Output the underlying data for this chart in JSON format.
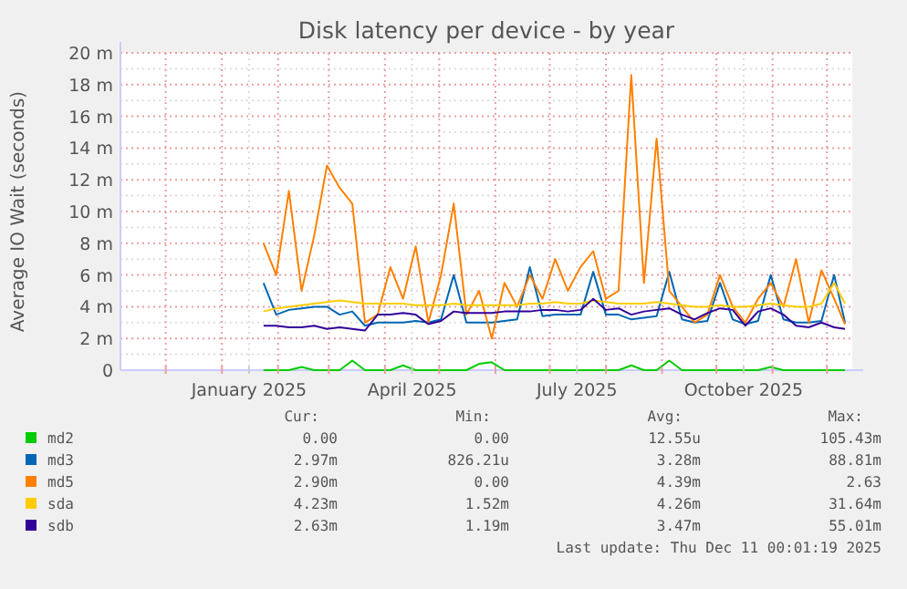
{
  "chart_data": {
    "type": "line",
    "title": "Disk latency per device - by year",
    "ylabel": "Average IO Wait (seconds)",
    "x": [
      "2025-01-24",
      "2025-01-31",
      "2025-02-07",
      "2025-02-14",
      "2025-02-21",
      "2025-02-28",
      "2025-03-07",
      "2025-03-14",
      "2025-03-21",
      "2025-03-28",
      "2025-04-04",
      "2025-04-11",
      "2025-04-18",
      "2025-04-25",
      "2025-05-02",
      "2025-05-09",
      "2025-05-16",
      "2025-05-23",
      "2025-05-30",
      "2025-06-06",
      "2025-06-13",
      "2025-06-20",
      "2025-06-27",
      "2025-07-04",
      "2025-07-11",
      "2025-07-18",
      "2025-07-25",
      "2025-08-01",
      "2025-08-08",
      "2025-08-15",
      "2025-08-22",
      "2025-08-29",
      "2025-09-05",
      "2025-09-12",
      "2025-09-19",
      "2025-09-26",
      "2025-10-03",
      "2025-10-10",
      "2025-10-17",
      "2025-10-24",
      "2025-10-31",
      "2025-11-07",
      "2025-11-14",
      "2025-11-21",
      "2025-11-28",
      "2025-12-05",
      "2025-12-11"
    ],
    "series": [
      {
        "name": "md2",
        "color": "#00cc00",
        "values": [
          0,
          0,
          0,
          0.2,
          0,
          0,
          0,
          0.6,
          0,
          0,
          0,
          0.3,
          0,
          0,
          0,
          0,
          0,
          0.4,
          0.5,
          0,
          0,
          0,
          0,
          0,
          0,
          0,
          0,
          0,
          0,
          0.3,
          0,
          0,
          0.6,
          0,
          0,
          0,
          0,
          0,
          0,
          0,
          0.2,
          0,
          0,
          0,
          0,
          0,
          0
        ]
      },
      {
        "name": "md3",
        "color": "#0066b3",
        "values": [
          5.5,
          3.5,
          3.8,
          3.9,
          4,
          4,
          3.5,
          3.7,
          2.8,
          3,
          3,
          3,
          3.1,
          3,
          3.2,
          6,
          3,
          3,
          3,
          3.1,
          3.2,
          6.5,
          3.4,
          3.5,
          3.5,
          3.5,
          6.2,
          3.5,
          3.5,
          3.2,
          3.3,
          3.4,
          6.2,
          3.2,
          3,
          3.1,
          5.5,
          3.2,
          2.9,
          3.1,
          6,
          3.2,
          3,
          3,
          3.1,
          6,
          3
        ]
      },
      {
        "name": "md5",
        "color": "#ff8000",
        "values": [
          8,
          6,
          11.3,
          5,
          8.5,
          12.9,
          11.5,
          10.5,
          3,
          3.5,
          6.5,
          4.5,
          7.8,
          3,
          6,
          10.5,
          3.5,
          5,
          2,
          5.5,
          4,
          6,
          4.5,
          7,
          5,
          6.5,
          7.5,
          4.5,
          5,
          18.6,
          5.5,
          14.6,
          5,
          4,
          3,
          3.5,
          6,
          4,
          3,
          4.5,
          5.5,
          4,
          7,
          3,
          6.3,
          4.5,
          2.9
        ]
      },
      {
        "name": "sda",
        "color": "#ffcc00",
        "values": [
          3.7,
          3.9,
          4,
          4.1,
          4.2,
          4.3,
          4.4,
          4.3,
          4.2,
          4.2,
          4.2,
          4.2,
          4.1,
          4.1,
          4.1,
          4.2,
          4.1,
          4.1,
          4.1,
          4.1,
          4.1,
          4.2,
          4.2,
          4.3,
          4.2,
          4.2,
          4.4,
          4.3,
          4.2,
          4.2,
          4.2,
          4.3,
          4.2,
          4.1,
          4,
          4,
          4.1,
          4,
          4,
          4.1,
          4.2,
          4.1,
          4,
          4,
          4.2,
          5.5,
          4.2
        ]
      },
      {
        "name": "sdb",
        "color": "#330099",
        "values": [
          2.8,
          2.8,
          2.7,
          2.7,
          2.8,
          2.6,
          2.7,
          2.6,
          2.5,
          3.5,
          3.5,
          3.6,
          3.5,
          2.9,
          3.1,
          3.7,
          3.6,
          3.6,
          3.6,
          3.7,
          3.7,
          3.7,
          3.8,
          3.8,
          3.7,
          3.8,
          4.5,
          3.8,
          3.9,
          3.5,
          3.7,
          3.8,
          3.9,
          3.5,
          3.2,
          3.6,
          3.9,
          3.8,
          2.8,
          3.7,
          3.9,
          3.5,
          2.8,
          2.7,
          3,
          2.7,
          2.6
        ]
      }
    ],
    "xlim": [
      "2024-11-06",
      "2025-12-15"
    ],
    "xticks": [
      {
        "value": "2024-12-01",
        "label": null
      },
      {
        "value": "2025-01-01",
        "label": null
      },
      {
        "value": "2025-01-16",
        "label": "January 2025"
      },
      {
        "value": "2025-02-01",
        "label": null
      },
      {
        "value": "2025-03-01",
        "label": null
      },
      {
        "value": "2025-04-01",
        "label": null
      },
      {
        "value": "2025-04-16",
        "label": "April 2025"
      },
      {
        "value": "2025-05-01",
        "label": null
      },
      {
        "value": "2025-06-01",
        "label": null
      },
      {
        "value": "2025-07-01",
        "label": null
      },
      {
        "value": "2025-07-16",
        "label": "July 2025"
      },
      {
        "value": "2025-08-01",
        "label": null
      },
      {
        "value": "2025-09-01",
        "label": null
      },
      {
        "value": "2025-10-01",
        "label": null
      },
      {
        "value": "2025-10-16",
        "label": "October 2025"
      },
      {
        "value": "2025-11-01",
        "label": null
      },
      {
        "value": "2025-12-01",
        "label": null
      }
    ],
    "ylim": [
      0,
      20
    ],
    "yticks": [
      0,
      {
        "value": 2,
        "label": "2 m"
      },
      {
        "value": 4,
        "label": "4 m"
      },
      {
        "value": 6,
        "label": "6 m"
      },
      {
        "value": 8,
        "label": "8 m"
      },
      {
        "value": 10,
        "label": "10 m"
      },
      {
        "value": 12,
        "label": "12 m"
      },
      {
        "value": 14,
        "label": "14 m"
      },
      {
        "value": 16,
        "label": "16 m"
      },
      {
        "value": 18,
        "label": "18 m"
      },
      {
        "value": 20,
        "label": "20 m"
      }
    ],
    "grid": true,
    "legend": "bottom",
    "line_style": "solid",
    "marker": "none",
    "annotations": [
      "Cur:",
      "Min:",
      "Avg:",
      "Max:",
      "0.00",
      "0.00",
      "12.55u",
      "105.43m",
      "2.97m",
      "826.21u",
      "3.28m",
      "88.81m",
      "2.90m",
      "0.00",
      "4.39m",
      "2.63",
      "4.23m",
      "1.52m",
      "4.26m",
      "31.64m",
      "2.63m",
      "1.19m",
      "3.47m",
      "55.01m",
      "Last update: Thu Dec 11 00:01:19 2025"
    ]
  }
}
